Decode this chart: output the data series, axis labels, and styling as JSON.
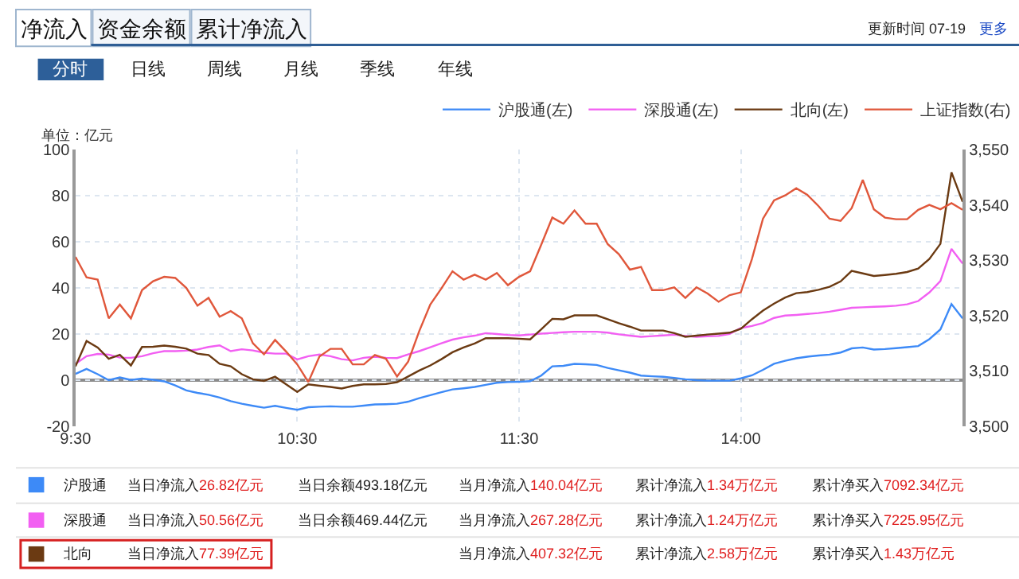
{
  "chart_data": {
    "type": "line",
    "ylabel": "单位：亿元",
    "categories": [
      "9:30",
      null,
      null,
      null,
      null,
      null,
      null,
      null,
      null,
      null,
      null,
      null,
      null,
      null,
      null,
      null,
      null,
      null,
      null,
      null,
      "10:30",
      null,
      null,
      null,
      null,
      null,
      null,
      null,
      null,
      null,
      null,
      null,
      null,
      null,
      null,
      null,
      null,
      null,
      null,
      null,
      "11:30",
      null,
      null,
      null,
      null,
      null,
      null,
      null,
      null,
      null,
      null,
      null,
      null,
      null,
      null,
      null,
      null,
      null,
      null,
      null,
      "14:00",
      null,
      null,
      null,
      null,
      null,
      null,
      null,
      null,
      null,
      null,
      null,
      null,
      null,
      null,
      null,
      null,
      null,
      null,
      null,
      null
    ],
    "ylim": [
      -20,
      100
    ],
    "yticks": [
      -20,
      0,
      20,
      40,
      60,
      80,
      100
    ],
    "y2lim": [
      3500,
      3550
    ],
    "y2ticks": [
      {
        "value": 3500,
        "label": "3,500"
      },
      {
        "value": 3510,
        "label": "3,510"
      },
      {
        "value": 3520,
        "label": "3,520"
      },
      {
        "value": 3530,
        "label": "3,530"
      },
      {
        "value": 3540,
        "label": "3,540"
      },
      {
        "value": 3550,
        "label": "3,550"
      }
    ],
    "grid": true,
    "legend": "top right",
    "marker": "none",
    "line_style": "solid",
    "ref_lines": [
      {
        "axis": "y",
        "value": 0,
        "color": "#8c8c8c"
      }
    ],
    "series": [
      {
        "name": "沪股通(左)",
        "color": "#3d8af7",
        "values": [
          2.7,
          4.9,
          2.6,
          0,
          1.2,
          0.1,
          0.7,
          0.2,
          -0.5,
          -2.3,
          -4.4,
          -5.5,
          -6.3,
          -7.5,
          -9.1,
          -10.2,
          -11.1,
          -11.9,
          -11.1,
          -12,
          -12.8,
          -11.7,
          -11.5,
          -11.3,
          -11.5,
          -11.5,
          -11,
          -10.5,
          -10.4,
          -10.2,
          -9.3,
          -7.8,
          -6.5,
          -5.2,
          -4.0,
          -3.5,
          -2.9,
          -2.0,
          -1.1,
          -0.8,
          -0.7,
          -0.4,
          2,
          6.0,
          6.2,
          7.1,
          6.9,
          6.6,
          5.3,
          4.3,
          3.3,
          2.0,
          1.7,
          1.5,
          1.0,
          0.4,
          0,
          -0.2,
          -0.2,
          -0.2,
          0.8,
          2.1,
          4.5,
          7.1,
          8.4,
          9.5,
          10.2,
          10.7,
          11.1,
          12,
          13.8,
          14.2,
          13.3,
          13.5,
          13.9,
          14.3,
          14.8,
          17.8,
          22,
          33.0,
          26.8
        ]
      },
      {
        "name": "深股通(左)",
        "color": "#f25ff2",
        "values": [
          7.1,
          10.4,
          11.4,
          11.1,
          9.8,
          9.7,
          10.4,
          11.7,
          12.6,
          12.6,
          12.8,
          13.3,
          14.4,
          15.1,
          12.6,
          13.4,
          12.9,
          11.9,
          11.5,
          11.5,
          9.0,
          10.4,
          11.1,
          10.4,
          9.1,
          8.6,
          9.7,
          10.2,
          9.7,
          9.6,
          11.2,
          12.6,
          14.3,
          16.0,
          17.6,
          18.6,
          19.3,
          20.4,
          20.0,
          19.6,
          19.4,
          19.8,
          20.2,
          20.5,
          20.8,
          21.0,
          21.0,
          21.0,
          20.6,
          19.9,
          19.3,
          18.8,
          19.1,
          19.4,
          19.7,
          19.2,
          18.8,
          19.0,
          19.2,
          20.1,
          22.6,
          23.5,
          24.8,
          27.0,
          28.0,
          28.3,
          28.7,
          29.1,
          29.7,
          30.5,
          31.4,
          31.6,
          31.8,
          32.0,
          32.3,
          32.9,
          34.3,
          38.0,
          43.0,
          56.9,
          50.6
        ]
      },
      {
        "name": "北向(左)",
        "color": "#6b3a12",
        "values": [
          6.0,
          17.0,
          14.2,
          9.3,
          11.0,
          6.4,
          14.4,
          14.5,
          15.0,
          14.5,
          13.7,
          11.5,
          10.9,
          7.1,
          6.0,
          2.6,
          0.4,
          -0.3,
          1.5,
          -1.8,
          -5.1,
          -1.8,
          -2.4,
          -2.9,
          -3.6,
          -2.5,
          -1.8,
          -1.8,
          -1.6,
          -0.9,
          1.6,
          4.2,
          6.4,
          9.1,
          12.1,
          14.2,
          15.9,
          18.2,
          18.2,
          18.2,
          18.0,
          17.7,
          22,
          26.6,
          26.4,
          28.1,
          28.1,
          28.1,
          26.4,
          24.7,
          23.2,
          21.5,
          21.5,
          21.5,
          20.4,
          18.8,
          19.3,
          19.8,
          20.2,
          20.6,
          22.3,
          26.4,
          30.2,
          33.2,
          35.8,
          37.7,
          38.2,
          39.2,
          40.5,
          42.8,
          47.4,
          46.3,
          45.2,
          45.6,
          46.1,
          46.9,
          48.4,
          52.5,
          59.1,
          90.1,
          77.4
        ]
      },
      {
        "name": "上证指数(右)",
        "color": "#e0573b",
        "axis": "y2",
        "values": [
          3530.6,
          3526.9,
          3526.5,
          3519.5,
          3522.0,
          3519.5,
          3524.6,
          3526.2,
          3527.0,
          3526.8,
          3525.0,
          3521.8,
          3523.2,
          3519.8,
          3520.8,
          3519.5,
          3515.0,
          3513.0,
          3515.6,
          3513.5,
          3511.2,
          3508.0,
          3512.6,
          3514.0,
          3514.0,
          3511.2,
          3511.2,
          3512.9,
          3512.2,
          3509.0,
          3511.7,
          3517.2,
          3522.0,
          3524.9,
          3528.0,
          3526.5,
          3527.4,
          3526.5,
          3527.7,
          3525.5,
          3527.0,
          3528.0,
          3532.8,
          3537.7,
          3536.6,
          3539.0,
          3536.6,
          3536.6,
          3532.9,
          3531.1,
          3528.3,
          3528.8,
          3524.6,
          3524.6,
          3525.1,
          3523.2,
          3525.1,
          3524.0,
          3522.5,
          3523.7,
          3524.2,
          3530.2,
          3537.5,
          3540.8,
          3541.7,
          3543.0,
          3541.8,
          3539.8,
          3537.5,
          3537.1,
          3539.4,
          3544.5,
          3539.2,
          3537.7,
          3537.4,
          3537.4,
          3539.1,
          3540.0,
          3539.2,
          3540.3,
          3539.1
        ]
      }
    ],
    "annotations": [
      "净流入",
      "资金余额",
      "累计净流入",
      "更新时间 07-19",
      "更多",
      "分时",
      "日线",
      "周线",
      "月线",
      "季线",
      "年线",
      "沪股通",
      "当日净流入26.82亿元",
      "当日余额493.18亿元",
      "当月净流入140.04亿元",
      "累计净流入1.34万亿元",
      "累计净买入7092.34亿元",
      "深股通",
      "当日净流入50.56亿元",
      "当日余额469.44亿元",
      "当月净流入267.28亿元",
      "累计净流入1.24万亿元",
      "累计净买入7225.95亿元",
      "北向",
      "当日净流入77.39亿元",
      "当月净流入407.32亿元",
      "累计净流入2.58万亿元",
      "累计净买入1.43万亿元"
    ]
  }
}
